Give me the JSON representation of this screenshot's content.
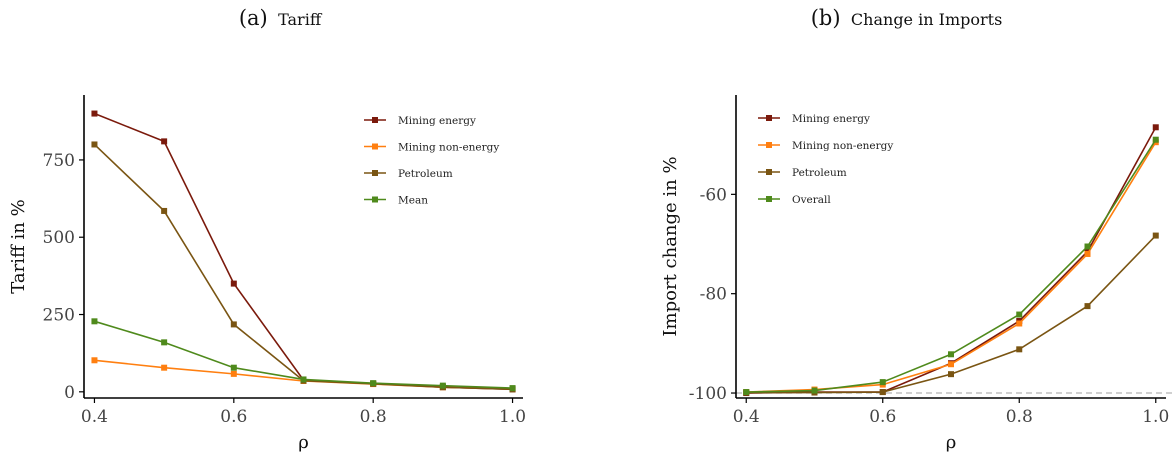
{
  "colors": {
    "Mining energy": "#7b1a0c",
    "Mining non-energy": "#ff7f10",
    "Petroleum": "#7a5513",
    "Mean": "#4f8a1c",
    "Overall": "#4f8a1c",
    "reference": "#b3b3b3",
    "axis": "#000000"
  },
  "chart_data": [
    {
      "type": "line",
      "title_tag": "(a)",
      "title": "Tariff",
      "xlabel": "ρ",
      "ylabel": "Tariff in %",
      "x": [
        0.4,
        0.5,
        0.6,
        0.7,
        0.8,
        0.9,
        1.0
      ],
      "xticks": [
        0.4,
        0.6,
        0.8,
        1.0
      ],
      "xtick_labels": [
        "0.4",
        "0.6",
        "0.8",
        "1.0"
      ],
      "yticks": [
        0,
        250,
        500,
        750
      ],
      "ytick_labels": [
        "0",
        "250",
        "500",
        "750"
      ],
      "xlim": [
        0.385,
        1.015
      ],
      "ylim": [
        -20,
        960
      ],
      "grid": false,
      "legend_position": "top-right",
      "series": [
        {
          "name": "Mining energy",
          "values": [
            900,
            810,
            350,
            38,
            27,
            15,
            8
          ]
        },
        {
          "name": "Mining non-energy",
          "values": [
            102,
            78,
            58,
            35,
            25,
            15,
            9
          ]
        },
        {
          "name": "Petroleum",
          "values": [
            800,
            585,
            218,
            36,
            26,
            15,
            8
          ]
        },
        {
          "name": "Mean",
          "values": [
            228,
            160,
            78,
            40,
            28,
            20,
            12
          ]
        }
      ]
    },
    {
      "type": "line",
      "title_tag": "(b)",
      "title": "Change in Imports",
      "xlabel": "ρ",
      "ylabel": "Import change in %",
      "x": [
        0.4,
        0.5,
        0.6,
        0.7,
        0.8,
        0.9,
        1.0
      ],
      "xticks": [
        0.4,
        0.6,
        0.8,
        1.0
      ],
      "xtick_labels": [
        "0.4",
        "0.6",
        "0.8",
        "1.0"
      ],
      "yticks": [
        -100,
        -80,
        -60
      ],
      "ytick_labels": [
        "-100",
        "-80",
        "-60"
      ],
      "xlim": [
        0.385,
        1.015
      ],
      "ylim": [
        -101,
        -40
      ],
      "reference_line": -100,
      "grid": false,
      "legend_position": "top-left",
      "series": [
        {
          "name": "Mining energy",
          "values": [
            -100,
            -99.8,
            -99.8,
            -94,
            -85.5,
            -71.5,
            -46.5
          ]
        },
        {
          "name": "Mining non-energy",
          "values": [
            -99.8,
            -99.3,
            -98.3,
            -94.2,
            -86.0,
            -72.0,
            -49.5
          ]
        },
        {
          "name": "Petroleum",
          "values": [
            -99.9,
            -99.9,
            -99.8,
            -96.2,
            -91.2,
            -82.5,
            -68.3
          ]
        },
        {
          "name": "Overall",
          "values": [
            -99.8,
            -99.5,
            -97.8,
            -92.2,
            -84.2,
            -70.5,
            -49.0
          ]
        }
      ]
    }
  ]
}
